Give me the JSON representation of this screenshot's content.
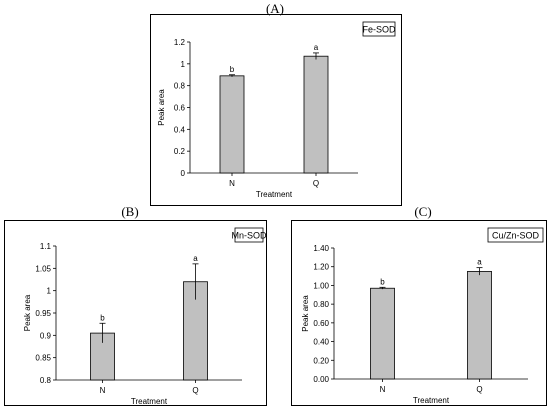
{
  "panels": [
    {
      "label": "(A)"
    },
    {
      "label": "(B)"
    },
    {
      "label": "(C)"
    }
  ],
  "chart_data": [
    {
      "type": "bar",
      "panel": "(A)",
      "title": "Fe-SOD",
      "xlabel": "Treatment",
      "ylabel": "Peak area",
      "categories": [
        "N",
        "Q"
      ],
      "values": [
        0.89,
        1.07
      ],
      "errors": [
        0.01,
        0.03
      ],
      "letters": [
        "b",
        "a"
      ],
      "ylim": [
        0,
        1.2
      ],
      "yticks": [
        0,
        0.2,
        0.4,
        0.6,
        0.8,
        1,
        1.2
      ],
      "ytick_labels": [
        "0",
        "0.2",
        "0.4",
        "0.6",
        "0.8",
        "1",
        "1.2"
      ]
    },
    {
      "type": "bar",
      "panel": "(B)",
      "title": "Mn-SOD",
      "xlabel": "Treatment",
      "ylabel": "Peak area",
      "categories": [
        "N",
        "Q"
      ],
      "values": [
        0.905,
        1.02
      ],
      "errors": [
        0.022,
        0.04
      ],
      "letters": [
        "b",
        "a"
      ],
      "ylim": [
        0.8,
        1.1
      ],
      "yticks": [
        0.8,
        0.85,
        0.9,
        0.95,
        1,
        1.05,
        1.1
      ],
      "ytick_labels": [
        "0.8",
        "0.85",
        "0.9",
        "0.95",
        "1",
        "1.05",
        "1.1"
      ]
    },
    {
      "type": "bar",
      "panel": "(C)",
      "title": "Cu/Zn-SOD",
      "xlabel": "Treatment",
      "ylabel": "Peak area",
      "categories": [
        "N",
        "Q"
      ],
      "values": [
        0.97,
        1.15
      ],
      "errors": [
        0.01,
        0.04
      ],
      "letters": [
        "b",
        "a"
      ],
      "ylim": [
        0,
        1.4
      ],
      "yticks": [
        0,
        0.2,
        0.4,
        0.6,
        0.8,
        1.0,
        1.2,
        1.4
      ],
      "ytick_labels": [
        "0.00",
        "0.20",
        "0.40",
        "0.60",
        "0.80",
        "1.00",
        "1.20",
        "1.40"
      ]
    }
  ],
  "colors": {
    "bar_fill": "#c0c0c0",
    "bar_stroke": "#000000",
    "frame": "#000000"
  }
}
